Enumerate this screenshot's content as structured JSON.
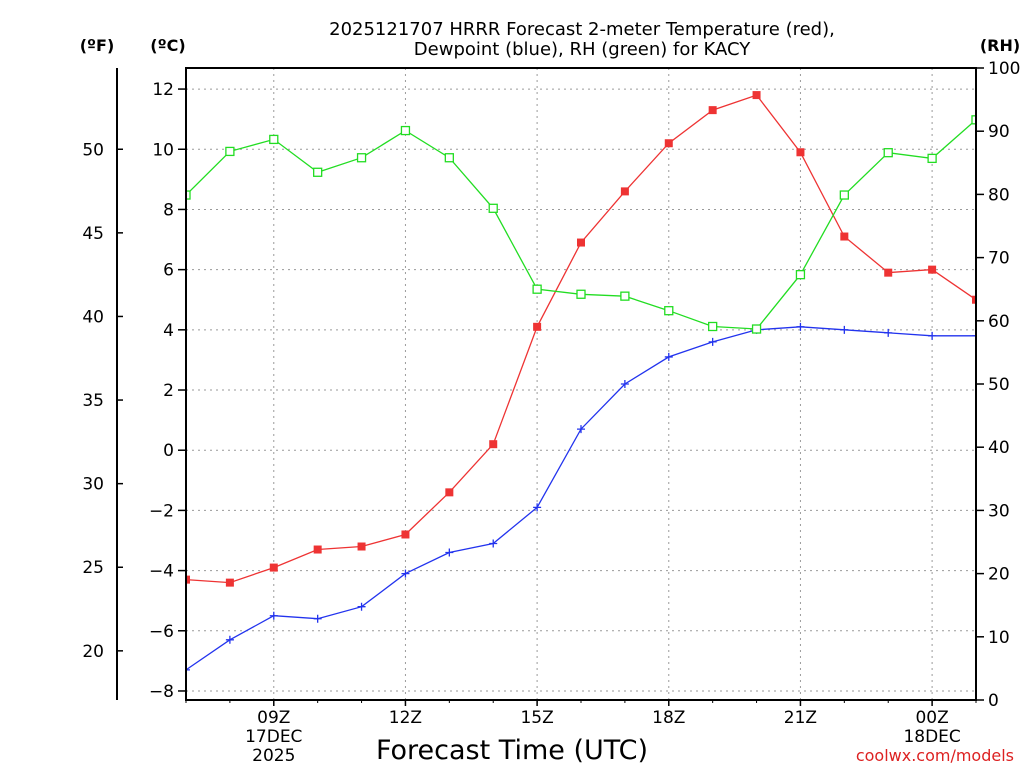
{
  "chart_data": {
    "type": "line",
    "title_line1": "2025121707 HRRR Forecast 2-meter Temperature (red),",
    "title_line2": "Dewpoint (blue), RH (green) for KACY",
    "xlabel": "Forecast Time (UTC)",
    "unit_f": "(ºF)",
    "unit_c": "(ºC)",
    "unit_rh": "(RH)",
    "credit": "coolwx.com/models",
    "x_hours": [
      7,
      8,
      9,
      10,
      11,
      12,
      13,
      14,
      15,
      16,
      17,
      18,
      19,
      20,
      21,
      22,
      23,
      24,
      25
    ],
    "x_ticks": [
      {
        "hour": 9,
        "label": "09Z",
        "sub1": "17DEC",
        "sub2": "2025"
      },
      {
        "hour": 12,
        "label": "12Z",
        "sub1": "",
        "sub2": ""
      },
      {
        "hour": 15,
        "label": "15Z",
        "sub1": "",
        "sub2": ""
      },
      {
        "hour": 18,
        "label": "18Z",
        "sub1": "",
        "sub2": ""
      },
      {
        "hour": 21,
        "label": "21Z",
        "sub1": "",
        "sub2": ""
      },
      {
        "hour": 24,
        "label": "00Z",
        "sub1": "18DEC",
        "sub2": ""
      }
    ],
    "x_range": [
      7,
      25
    ],
    "c_range": [
      -8.3,
      12.7
    ],
    "c_ticks": [
      -8,
      -6,
      -4,
      -2,
      0,
      2,
      4,
      6,
      8,
      10,
      12
    ],
    "c_tick_labels": [
      "−8",
      "−6",
      "−4",
      "−2",
      "0",
      "2",
      "4",
      "6",
      "8",
      "10",
      "12"
    ],
    "f_ticks": [
      20,
      25,
      30,
      35,
      40,
      45,
      50
    ],
    "f_tick_labels": [
      "20",
      "25",
      "30",
      "35",
      "40",
      "45",
      "50"
    ],
    "rh_range": [
      0,
      100
    ],
    "rh_ticks": [
      0,
      10,
      20,
      30,
      40,
      50,
      60,
      70,
      80,
      90,
      100
    ],
    "rh_tick_labels": [
      "0",
      "10",
      "20",
      "30",
      "40",
      "50",
      "60",
      "70",
      "80",
      "90",
      "100"
    ],
    "series": [
      {
        "name": "Temperature",
        "axis": "c",
        "color": "#ee3333",
        "marker": "filled-square",
        "values": [
          -4.3,
          -4.4,
          -3.9,
          -3.3,
          -3.2,
          -2.8,
          -1.4,
          0.2,
          4.1,
          6.9,
          8.6,
          10.2,
          11.3,
          11.8,
          9.9,
          7.1,
          5.9,
          6.0,
          5.0
        ]
      },
      {
        "name": "Dewpoint",
        "axis": "c",
        "color": "#2233ee",
        "marker": "plus",
        "values": [
          -7.3,
          -6.3,
          -5.5,
          -5.6,
          -5.2,
          -4.1,
          -3.4,
          -3.1,
          -1.9,
          0.7,
          2.2,
          3.1,
          3.6,
          4.0,
          4.1,
          4.0,
          3.9,
          3.8,
          3.8
        ]
      },
      {
        "name": "RH",
        "axis": "rh",
        "color": "#22dd22",
        "marker": "open-square",
        "values": [
          79.9,
          86.8,
          88.7,
          83.5,
          85.8,
          90.1,
          85.8,
          77.8,
          65.0,
          64.2,
          63.9,
          61.6,
          59.1,
          58.7,
          67.3,
          79.9,
          86.6,
          85.7,
          91.8
        ]
      }
    ]
  }
}
